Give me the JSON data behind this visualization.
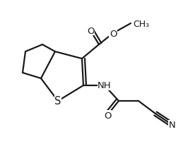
{
  "bg_color": "#ffffff",
  "line_color": "#1a1a1a",
  "line_width": 1.6,
  "font_size": 9.5,
  "figsize": [
    2.76,
    2.32
  ],
  "dpi": 100,
  "xlim": [
    0,
    276
  ],
  "ylim": [
    0,
    232
  ]
}
